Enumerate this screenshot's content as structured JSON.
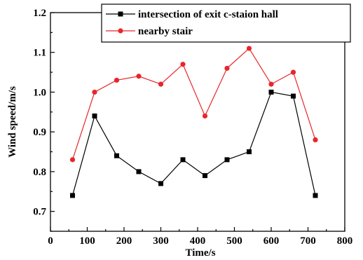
{
  "chart_data": {
    "type": "line",
    "title": "",
    "xlabel": "Time/s",
    "ylabel": "Wind speed/m/s",
    "xlim": [
      0,
      800
    ],
    "ylim": [
      0.65,
      1.2
    ],
    "xticks": [
      0,
      100,
      200,
      300,
      400,
      500,
      600,
      700,
      800
    ],
    "yticks": [
      0.7,
      0.8,
      0.9,
      1.0,
      1.1,
      1.2
    ],
    "ytick_labels": [
      "0.7",
      "0.8",
      "0.9",
      "1.0",
      "1.1",
      "1.2"
    ],
    "grid": false,
    "legend_position": "top-right",
    "series": [
      {
        "name": "intersection of exit c-staion hall",
        "color": "#000000",
        "marker": "square",
        "x": [
          60,
          120,
          180,
          240,
          300,
          360,
          420,
          480,
          540,
          600,
          660,
          720
        ],
        "y": [
          0.74,
          0.94,
          0.84,
          0.8,
          0.77,
          0.83,
          0.79,
          0.83,
          0.85,
          1.0,
          0.99,
          0.74
        ]
      },
      {
        "name": "nearby stair",
        "color": "#e8262a",
        "marker": "circle",
        "x": [
          60,
          120,
          180,
          240,
          300,
          360,
          420,
          480,
          540,
          600,
          660,
          720
        ],
        "y": [
          0.83,
          1.0,
          1.03,
          1.04,
          1.02,
          1.07,
          0.94,
          1.06,
          1.11,
          1.02,
          1.05,
          0.88
        ]
      }
    ]
  }
}
